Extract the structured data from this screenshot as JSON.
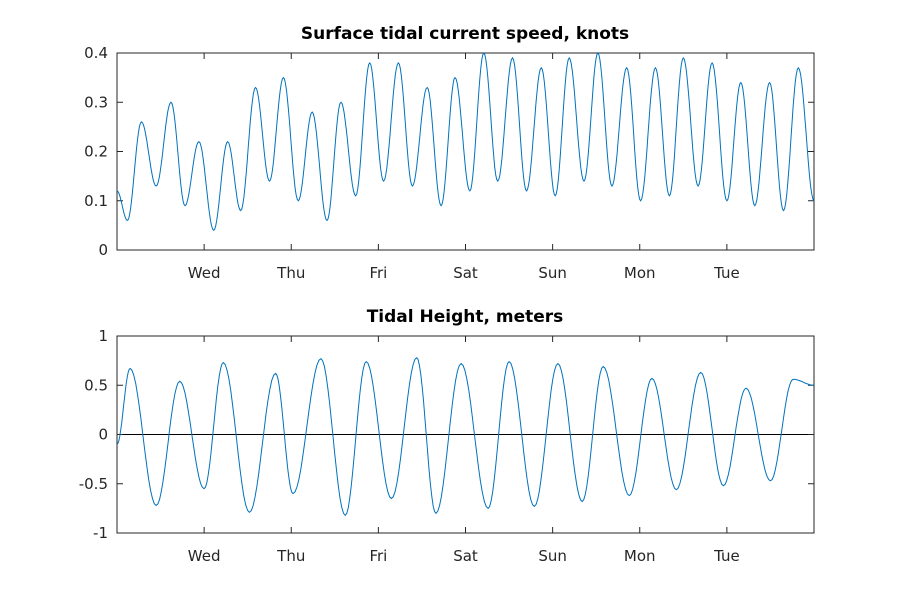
{
  "chart_data": [
    {
      "type": "line",
      "title": "Surface tidal current speed, knots",
      "xlabel": "",
      "ylabel": "",
      "ylim": [
        0,
        0.4
      ],
      "yticks": [
        "0",
        "0.1",
        "0.2",
        "0.3",
        "0.4"
      ],
      "yticks_values": [
        0,
        0.1,
        0.2,
        0.3,
        0.4
      ],
      "xlim_days": [
        0,
        8
      ],
      "xticks": [
        "Wed",
        "Thu",
        "Fri",
        "Sat",
        "Sun",
        "Mon",
        "Tue"
      ],
      "xticks_days": [
        1,
        2,
        3,
        4,
        5,
        6,
        7
      ],
      "color": "#0072BD",
      "series": [
        {
          "x_days": [
            0.0,
            0.12,
            0.28,
            0.45,
            0.62,
            0.78,
            0.94,
            1.11,
            1.27,
            1.42,
            1.59,
            1.75,
            1.91,
            2.08,
            2.24,
            2.41,
            2.57,
            2.74,
            2.9,
            3.06,
            3.23,
            3.39,
            3.56,
            3.72,
            3.88,
            4.05,
            4.21,
            4.37,
            4.54,
            4.7,
            4.87,
            5.03,
            5.19,
            5.36,
            5.52,
            5.68,
            5.85,
            6.01,
            6.18,
            6.34,
            6.5,
            6.67,
            6.83,
            7.0,
            7.16,
            7.32,
            7.49,
            7.65,
            7.82,
            8.0
          ],
          "values": [
            0.12,
            0.06,
            0.26,
            0.13,
            0.3,
            0.09,
            0.22,
            0.04,
            0.22,
            0.08,
            0.33,
            0.14,
            0.35,
            0.1,
            0.28,
            0.06,
            0.3,
            0.11,
            0.38,
            0.14,
            0.38,
            0.13,
            0.33,
            0.09,
            0.35,
            0.12,
            0.4,
            0.14,
            0.39,
            0.12,
            0.37,
            0.11,
            0.39,
            0.14,
            0.4,
            0.13,
            0.37,
            0.1,
            0.37,
            0.11,
            0.39,
            0.13,
            0.38,
            0.1,
            0.34,
            0.09,
            0.34,
            0.08,
            0.37,
            0.1
          ]
        }
      ]
    },
    {
      "type": "line",
      "title": "Tidal Height, meters",
      "xlabel": "",
      "ylabel": "",
      "ylim": [
        -1,
        1
      ],
      "yticks": [
        "-1",
        "-0.5",
        "0",
        "0.5",
        "1"
      ],
      "yticks_values": [
        -1,
        -0.5,
        0,
        0.5,
        1
      ],
      "xlim_days": [
        0,
        8
      ],
      "xticks": [
        "Wed",
        "Thu",
        "Fri",
        "Sat",
        "Sun",
        "Mon",
        "Tue"
      ],
      "xticks_days": [
        1,
        2,
        3,
        4,
        5,
        6,
        7
      ],
      "color": "#0072BD",
      "zero_line": true,
      "series": [
        {
          "x_days": [
            0.0,
            0.15,
            0.45,
            0.72,
            1.0,
            1.22,
            1.52,
            1.82,
            2.02,
            2.34,
            2.62,
            2.86,
            3.15,
            3.44,
            3.66,
            3.95,
            4.26,
            4.5,
            4.79,
            5.06,
            5.34,
            5.58,
            5.88,
            6.14,
            6.42,
            6.7,
            6.96,
            7.22,
            7.5,
            7.76,
            8.0
          ],
          "values": [
            -0.1,
            0.67,
            -0.72,
            0.54,
            -0.55,
            0.73,
            -0.79,
            0.62,
            -0.6,
            0.77,
            -0.82,
            0.74,
            -0.65,
            0.78,
            -0.8,
            0.72,
            -0.75,
            0.74,
            -0.73,
            0.72,
            -0.68,
            0.69,
            -0.62,
            0.57,
            -0.56,
            0.63,
            -0.52,
            0.47,
            -0.47,
            0.56,
            0.5
          ]
        }
      ]
    }
  ]
}
